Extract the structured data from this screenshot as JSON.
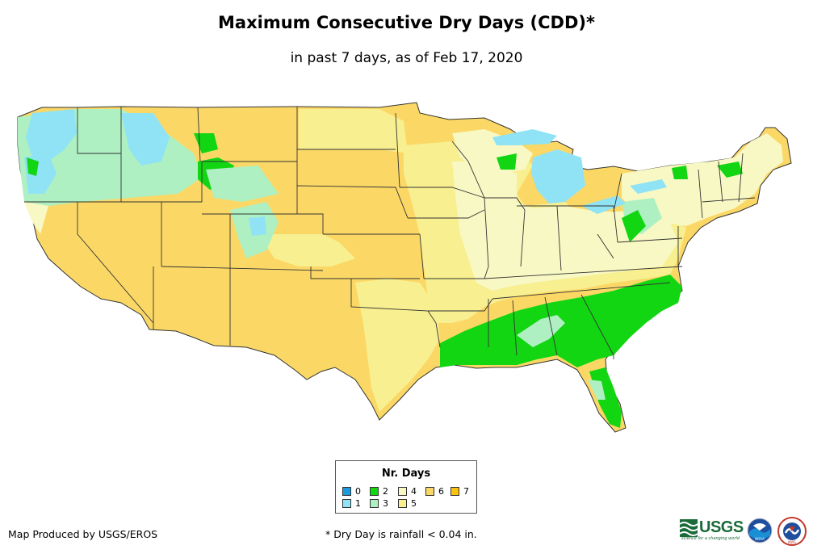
{
  "title": "Maximum Consecutive Dry Days (CDD)*",
  "subtitle": "in past 7 days, as of Feb 17, 2020",
  "legend": {
    "title": "Nr. Days",
    "items": [
      {
        "label": "0",
        "color": "#1a9be0"
      },
      {
        "label": "1",
        "color": "#8fe3f5"
      },
      {
        "label": "2",
        "color": "#12d612"
      },
      {
        "label": "3",
        "color": "#aef0c2"
      },
      {
        "label": "4",
        "color": "#f8f8c4"
      },
      {
        "label": "5",
        "color": "#f8ef90"
      },
      {
        "label": "6",
        "color": "#fbd866"
      },
      {
        "label": "7",
        "color": "#f9c110"
      }
    ]
  },
  "credit": "Map Produced by USGS/EROS",
  "footnote": "* Dry Day is rainfall < 0.04 in.",
  "logos": {
    "usgs_word": "USGS",
    "usgs_tagline": "science for a changing world",
    "noaa_word": "NOAA",
    "nws_word": "NWS"
  },
  "colors": {
    "state_border": "#333333"
  }
}
